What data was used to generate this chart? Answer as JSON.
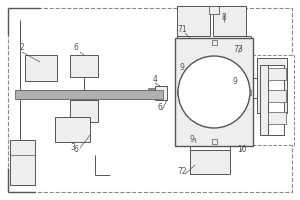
{
  "bg_color": "#ffffff",
  "line_color": "#555555",
  "fill_gray": "#d8d8d8",
  "fill_light": "#eeeeee",
  "font_size": 5.0,
  "dpi": 100,
  "figw": 3.0,
  "figh": 2.0
}
